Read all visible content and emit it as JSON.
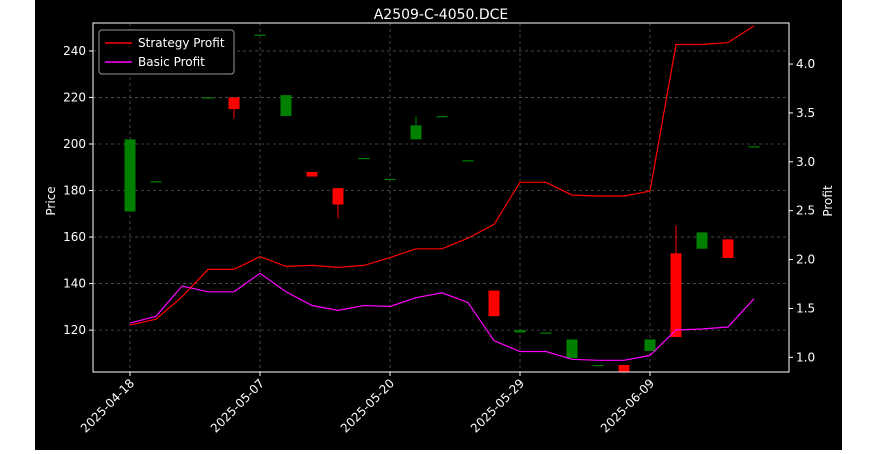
{
  "chart_data": {
    "type": "candlestick",
    "title": "A2509-C-4050.DCE",
    "xlabel": "",
    "ylabel": "Price",
    "y2label": "Profit",
    "ylim": [
      102,
      252
    ],
    "y2lim": [
      0.85,
      4.42
    ],
    "yticks": [
      120,
      140,
      160,
      180,
      200,
      220,
      240
    ],
    "y2ticks": [
      "1.0",
      "1.5",
      "2.0",
      "2.5",
      "3.0",
      "3.5",
      "4.0"
    ],
    "x_tick_labels": [
      {
        "index": 0,
        "label": "2025-04-18"
      },
      {
        "index": 5,
        "label": "2025-05-07"
      },
      {
        "index": 10,
        "label": "2025-05-20"
      },
      {
        "index": 15,
        "label": "2025-05-29"
      },
      {
        "index": 20,
        "label": "2025-06-09"
      }
    ],
    "grid": true,
    "legend_position": "upper-left",
    "colors": {
      "up": "#008000",
      "down": "#ff0000",
      "strategy": "#ff0000",
      "basic": "#ff00ff"
    },
    "candles": [
      {
        "open": 171,
        "high": 202,
        "low": 171,
        "close": 202
      },
      {
        "open": 184,
        "high": 184,
        "low": 184,
        "close": 184
      },
      {
        "open": 231,
        "high": 231,
        "low": 231,
        "close": 231
      },
      {
        "open": 220,
        "high": 220,
        "low": 220,
        "close": 220
      },
      {
        "open": 220,
        "high": 220,
        "low": 211,
        "close": 215
      },
      {
        "open": 247,
        "high": 247,
        "low": 247,
        "close": 247
      },
      {
        "open": 212,
        "high": 221,
        "low": 212,
        "close": 221
      },
      {
        "open": 188,
        "high": 188,
        "low": 186,
        "close": 186
      },
      {
        "open": 181,
        "high": 181,
        "low": 168,
        "close": 174
      },
      {
        "open": 194,
        "high": 194,
        "low": 194,
        "close": 194
      },
      {
        "open": 185,
        "high": 185,
        "low": 185,
        "close": 185
      },
      {
        "open": 202,
        "high": 212,
        "low": 202,
        "close": 208
      },
      {
        "open": 212,
        "high": 212,
        "low": 212,
        "close": 212
      },
      {
        "open": 193,
        "high": 193,
        "low": 193,
        "close": 193
      },
      {
        "open": 137,
        "high": 137,
        "low": 126,
        "close": 126
      },
      {
        "open": 119,
        "high": 120,
        "low": 119,
        "close": 120
      },
      {
        "open": 119,
        "high": 119,
        "low": 119,
        "close": 119
      },
      {
        "open": 108,
        "high": 116,
        "low": 108,
        "close": 116
      },
      {
        "open": 105,
        "high": 105,
        "low": 105,
        "close": 105
      },
      {
        "open": 105,
        "high": 105,
        "low": 102,
        "close": 102
      },
      {
        "open": 111,
        "high": 116,
        "low": 111,
        "close": 116
      },
      {
        "open": 153,
        "high": 165,
        "low": 117,
        "close": 117
      },
      {
        "open": 155,
        "high": 162,
        "low": 155,
        "close": 162
      },
      {
        "open": 159,
        "high": 159,
        "low": 151,
        "close": 151
      },
      {
        "open": 199,
        "high": 199,
        "low": 199,
        "close": 199
      }
    ],
    "series": [
      {
        "name": "Strategy Profit",
        "axis": "right",
        "values": [
          1.33,
          1.39,
          1.62,
          1.9,
          1.9,
          2.03,
          1.93,
          1.94,
          1.92,
          1.94,
          2.02,
          2.11,
          2.11,
          2.22,
          2.36,
          2.79,
          2.79,
          2.66,
          2.65,
          2.65,
          2.7,
          4.2,
          4.2,
          4.22,
          4.39
        ]
      },
      {
        "name": "Basic Profit",
        "axis": "right",
        "values": [
          1.35,
          1.42,
          1.73,
          1.67,
          1.67,
          1.86,
          1.67,
          1.53,
          1.48,
          1.53,
          1.52,
          1.61,
          1.66,
          1.56,
          1.17,
          1.06,
          1.06,
          0.98,
          0.97,
          0.97,
          1.02,
          1.28,
          1.29,
          1.31,
          1.6
        ]
      }
    ]
  }
}
